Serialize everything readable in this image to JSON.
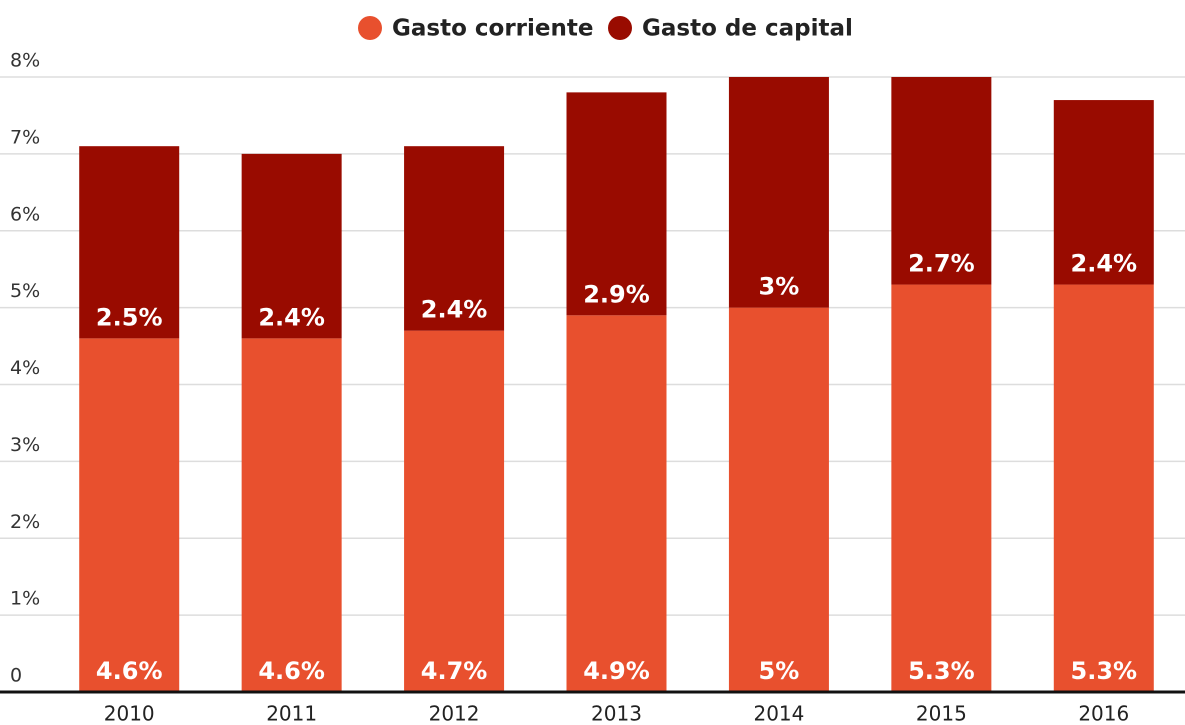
{
  "chart_data": {
    "type": "stacked-bar",
    "categories": [
      "2010",
      "2011",
      "2012",
      "2013",
      "2014",
      "2015",
      "2016"
    ],
    "series": [
      {
        "name": "Gasto corriente",
        "color": "#e8502e",
        "values": [
          4.6,
          4.6,
          4.7,
          4.9,
          5,
          5.3,
          5.3
        ],
        "value_labels": [
          "4.6%",
          "4.6%",
          "4.7%",
          "4.9%",
          "5%",
          "5.3%",
          "5.3%"
        ]
      },
      {
        "name": "Gasto de capital",
        "color": "#990b00",
        "values": [
          2.5,
          2.4,
          2.4,
          2.9,
          3,
          2.7,
          2.4
        ],
        "value_labels": [
          "2.5%",
          "2.4%",
          "2.4%",
          "2.9%",
          "3%",
          "2.7%",
          "2.4%"
        ]
      }
    ],
    "ylim": [
      0,
      8
    ],
    "yticks": [
      0,
      {
        "value": 1,
        "label": "1%"
      },
      {
        "value": 2,
        "label": "2%"
      },
      {
        "value": 3,
        "label": "3%"
      },
      {
        "value": 4,
        "label": "4%"
      },
      {
        "value": 5,
        "label": "5%"
      },
      {
        "value": 6,
        "label": "6%"
      },
      {
        "value": 7,
        "label": "7%"
      },
      {
        "value": 8,
        "label": "8%"
      }
    ],
    "grid": true,
    "legend": "top"
  }
}
